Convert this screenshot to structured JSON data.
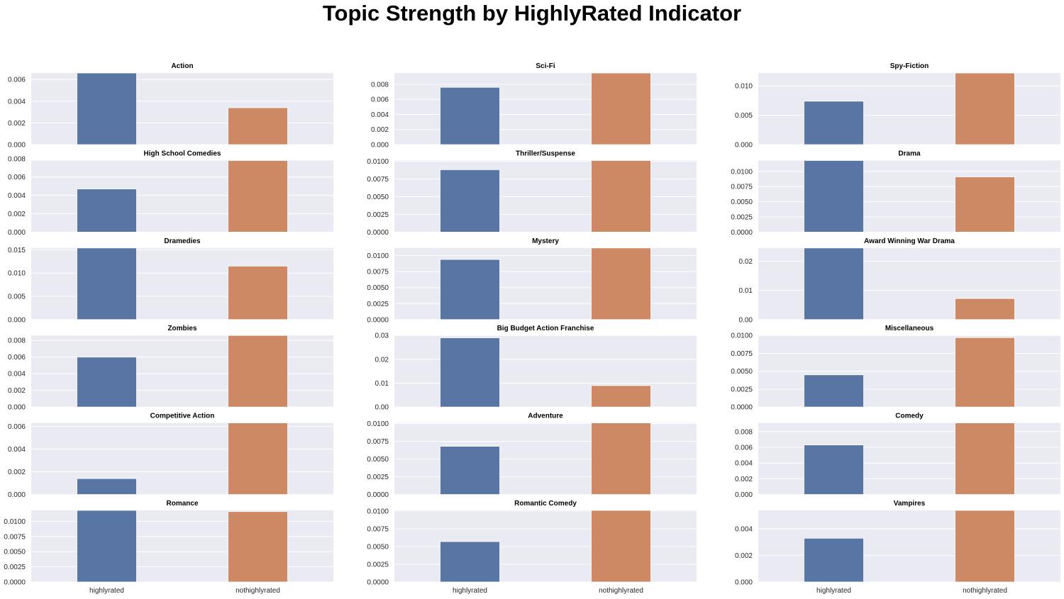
{
  "title": "Topic Strength by HighlyRated Indicator",
  "colors": {
    "highlyrated": "#5875a4",
    "nothighlyrated": "#cc8963",
    "panel_bg": "#eaeaf2",
    "grid": "#ffffff"
  },
  "chart_data": [
    {
      "type": "bar",
      "title": "Action",
      "categories": [
        "highlyrated",
        "nothighlyrated"
      ],
      "values": [
        0.0066,
        0.0034
      ],
      "ylim": [
        0,
        0.0066
      ],
      "yticks": [
        "0.000",
        "0.002",
        "0.004",
        "0.006"
      ],
      "ytick_values": [
        0,
        0.002,
        0.004,
        0.006
      ],
      "grid": true
    },
    {
      "type": "bar",
      "title": "Sci-Fi",
      "categories": [
        "highlyrated",
        "nothighlyrated"
      ],
      "values": [
        0.0076,
        0.0095
      ],
      "ylim": [
        0,
        0.0095
      ],
      "yticks": [
        "0.000",
        "0.002",
        "0.004",
        "0.006",
        "0.008"
      ],
      "ytick_values": [
        0,
        0.002,
        0.004,
        0.006,
        0.008
      ],
      "grid": true
    },
    {
      "type": "bar",
      "title": "Spy-Fiction",
      "categories": [
        "highlyrated",
        "nothighlyrated"
      ],
      "values": [
        0.0074,
        0.0122
      ],
      "ylim": [
        0,
        0.0122
      ],
      "yticks": [
        "0.000",
        "0.005",
        "0.010"
      ],
      "ytick_values": [
        0,
        0.005,
        0.01
      ],
      "grid": true
    },
    {
      "type": "bar",
      "title": "High School Comedies",
      "categories": [
        "highlyrated",
        "nothighlyrated"
      ],
      "values": [
        0.0047,
        0.0078
      ],
      "ylim": [
        0,
        0.0078
      ],
      "yticks": [
        "0.000",
        "0.002",
        "0.004",
        "0.006",
        "0.008"
      ],
      "ytick_values": [
        0,
        0.002,
        0.004,
        0.006,
        0.008
      ],
      "grid": true
    },
    {
      "type": "bar",
      "title": "Thriller/Suspense",
      "categories": [
        "highlyrated",
        "nothighlyrated"
      ],
      "values": [
        0.0088,
        0.0101
      ],
      "ylim": [
        0,
        0.0101
      ],
      "yticks": [
        "0.0000",
        "0.0025",
        "0.0050",
        "0.0075",
        "0.0100"
      ],
      "ytick_values": [
        0,
        0.0025,
        0.005,
        0.0075,
        0.01
      ],
      "grid": true
    },
    {
      "type": "bar",
      "title": "Drama",
      "categories": [
        "highlyrated",
        "nothighlyrated"
      ],
      "values": [
        0.0118,
        0.0091
      ],
      "ylim": [
        0,
        0.0118
      ],
      "yticks": [
        "0.0000",
        "0.0025",
        "0.0050",
        "0.0075",
        "0.0100"
      ],
      "ytick_values": [
        0,
        0.0025,
        0.005,
        0.0075,
        0.01
      ],
      "grid": true
    },
    {
      "type": "bar",
      "title": "Dramedies",
      "categories": [
        "highlyrated",
        "nothighlyrated"
      ],
      "values": [
        0.0154,
        0.0115
      ],
      "ylim": [
        0,
        0.0154
      ],
      "yticks": [
        "0.000",
        "0.005",
        "0.010",
        "0.015"
      ],
      "ytick_values": [
        0,
        0.005,
        0.01,
        0.015
      ],
      "grid": true
    },
    {
      "type": "bar",
      "title": "Mystery",
      "categories": [
        "highlyrated",
        "nothighlyrated"
      ],
      "values": [
        0.0094,
        0.0112
      ],
      "ylim": [
        0,
        0.0112
      ],
      "yticks": [
        "0.0000",
        "0.0025",
        "0.0050",
        "0.0075",
        "0.0100"
      ],
      "ytick_values": [
        0,
        0.0025,
        0.005,
        0.0075,
        0.01
      ],
      "grid": true
    },
    {
      "type": "bar",
      "title": "Award Winning War Drama",
      "categories": [
        "highlyrated",
        "nothighlyrated"
      ],
      "values": [
        0.0245,
        0.0072
      ],
      "ylim": [
        0,
        0.0245
      ],
      "yticks": [
        "0.00",
        "0.01",
        "0.02"
      ],
      "ytick_values": [
        0,
        0.01,
        0.02
      ],
      "grid": true
    },
    {
      "type": "bar",
      "title": "Zombies",
      "categories": [
        "highlyrated",
        "nothighlyrated"
      ],
      "values": [
        0.006,
        0.0086
      ],
      "ylim": [
        0,
        0.0086
      ],
      "yticks": [
        "0.000",
        "0.002",
        "0.004",
        "0.006",
        "0.008"
      ],
      "ytick_values": [
        0,
        0.002,
        0.004,
        0.006,
        0.008
      ],
      "grid": true
    },
    {
      "type": "bar",
      "title": "Big Budget Action Franchise",
      "categories": [
        "highlyrated",
        "nothighlyrated"
      ],
      "values": [
        0.029,
        0.009
      ],
      "ylim": [
        0,
        0.03
      ],
      "yticks": [
        "0.00",
        "0.01",
        "0.02",
        "0.03"
      ],
      "ytick_values": [
        0,
        0.01,
        0.02,
        0.03
      ],
      "grid": true
    },
    {
      "type": "bar",
      "title": "Miscellaneous",
      "categories": [
        "highlyrated",
        "nothighlyrated"
      ],
      "values": [
        0.0045,
        0.0097
      ],
      "ylim": [
        0,
        0.01
      ],
      "yticks": [
        "0.0000",
        "0.0025",
        "0.0050",
        "0.0075",
        "0.0100"
      ],
      "ytick_values": [
        0,
        0.0025,
        0.005,
        0.0075,
        0.01
      ],
      "grid": true
    },
    {
      "type": "bar",
      "title": "Competitive Action",
      "categories": [
        "highlyrated",
        "nothighlyrated"
      ],
      "values": [
        0.0014,
        0.0063
      ],
      "ylim": [
        0,
        0.0063
      ],
      "yticks": [
        "0.000",
        "0.002",
        "0.004",
        "0.006"
      ],
      "ytick_values": [
        0,
        0.002,
        0.004,
        0.006
      ],
      "grid": true
    },
    {
      "type": "bar",
      "title": "Adventure",
      "categories": [
        "highlyrated",
        "nothighlyrated"
      ],
      "values": [
        0.0068,
        0.0101
      ],
      "ylim": [
        0,
        0.0101
      ],
      "yticks": [
        "0.0000",
        "0.0025",
        "0.0050",
        "0.0075",
        "0.0100"
      ],
      "ytick_values": [
        0,
        0.0025,
        0.005,
        0.0075,
        0.01
      ],
      "grid": true
    },
    {
      "type": "bar",
      "title": "Comedy",
      "categories": [
        "highlyrated",
        "nothighlyrated"
      ],
      "values": [
        0.0063,
        0.0091
      ],
      "ylim": [
        0,
        0.0091
      ],
      "yticks": [
        "0.000",
        "0.002",
        "0.004",
        "0.006",
        "0.008"
      ],
      "ytick_values": [
        0,
        0.002,
        0.004,
        0.006,
        0.008
      ],
      "grid": true
    },
    {
      "type": "bar",
      "title": "Romance",
      "categories": [
        "highlyrated",
        "nothighlyrated"
      ],
      "values": [
        0.0118,
        0.0116
      ],
      "ylim": [
        0,
        0.0118
      ],
      "yticks": [
        "0.0000",
        "0.0025",
        "0.0050",
        "0.0075",
        "0.0100"
      ],
      "ytick_values": [
        0,
        0.0025,
        0.005,
        0.0075,
        0.01
      ],
      "grid": true
    },
    {
      "type": "bar",
      "title": "Romantic Comedy",
      "categories": [
        "highlyrated",
        "nothighlyrated"
      ],
      "values": [
        0.0057,
        0.0101
      ],
      "ylim": [
        0,
        0.0101
      ],
      "yticks": [
        "0.0000",
        "0.0025",
        "0.0050",
        "0.0075",
        "0.0100"
      ],
      "ytick_values": [
        0,
        0.0025,
        0.005,
        0.0075,
        0.01
      ],
      "grid": true
    },
    {
      "type": "bar",
      "title": "Vampires",
      "categories": [
        "highlyrated",
        "nothighlyrated"
      ],
      "values": [
        0.0033,
        0.0054
      ],
      "ylim": [
        0,
        0.0054
      ],
      "yticks": [
        "0.000",
        "0.002",
        "0.004"
      ],
      "ytick_values": [
        0,
        0.002,
        0.004
      ],
      "grid": true
    }
  ]
}
